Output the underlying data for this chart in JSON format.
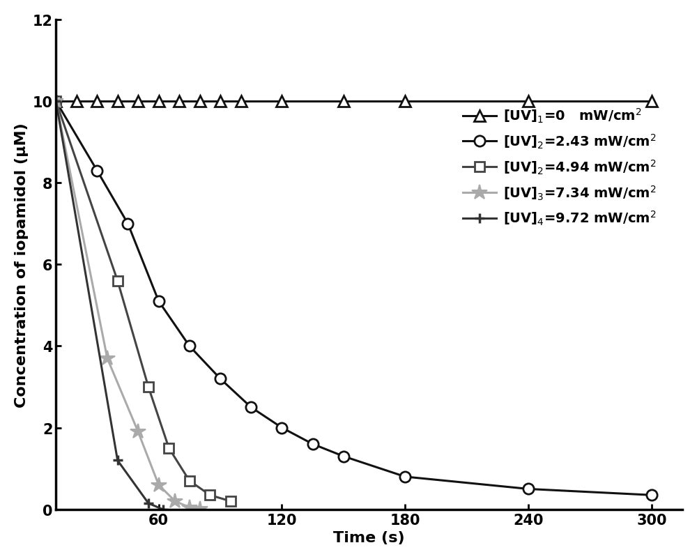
{
  "series": [
    {
      "label": "[UV]$_1$=0   mW/cm$^2$",
      "color": "#111111",
      "marker": "^",
      "markersize": 11,
      "linewidth": 2.2,
      "markerfacecolor": "white",
      "markeredgecolor": "#111111",
      "markeredgewidth": 2.0,
      "x": [
        10,
        20,
        30,
        40,
        50,
        60,
        70,
        80,
        90,
        100,
        120,
        150,
        180,
        240,
        300
      ],
      "y": [
        10,
        10,
        10,
        10,
        10,
        10,
        10,
        10,
        10,
        10,
        10,
        10,
        10,
        10,
        10
      ]
    },
    {
      "label": "[UV]$_2$=2.43 mW/cm$^2$",
      "color": "#111111",
      "marker": "o",
      "markersize": 11,
      "linewidth": 2.2,
      "markerfacecolor": "white",
      "markeredgecolor": "#111111",
      "markeredgewidth": 2.0,
      "x": [
        10,
        30,
        45,
        60,
        75,
        90,
        105,
        120,
        135,
        150,
        180,
        240,
        300
      ],
      "y": [
        10,
        8.3,
        7.0,
        5.1,
        4.0,
        3.2,
        2.5,
        2.0,
        1.6,
        1.3,
        0.8,
        0.5,
        0.35
      ]
    },
    {
      "label": "[UV]$_2$=4.94 mW/cm$^2$",
      "color": "#444444",
      "marker": "s",
      "markersize": 10,
      "linewidth": 2.2,
      "markerfacecolor": "white",
      "markeredgecolor": "#444444",
      "markeredgewidth": 2.0,
      "x": [
        10,
        40,
        55,
        65,
        75,
        85,
        95
      ],
      "y": [
        10,
        5.6,
        3.0,
        1.5,
        0.7,
        0.35,
        0.2
      ]
    },
    {
      "label": "[UV]$_3$=7.34 mW/cm$^2$",
      "color": "#aaaaaa",
      "marker": "*",
      "markersize": 16,
      "linewidth": 2.2,
      "markerfacecolor": "#aaaaaa",
      "markeredgecolor": "#aaaaaa",
      "markeredgewidth": 1.5,
      "x": [
        10,
        35,
        50,
        60,
        68,
        75,
        80
      ],
      "y": [
        10,
        3.7,
        1.9,
        0.6,
        0.2,
        0.05,
        0.02
      ]
    },
    {
      "label": "[UV]$_4$=9.72 mW/cm$^2$",
      "color": "#333333",
      "marker": "P",
      "markersize": 10,
      "linewidth": 2.2,
      "markerfacecolor": "#333333",
      "markeredgecolor": "#333333",
      "markeredgewidth": 1.5,
      "x": [
        10,
        40,
        55,
        62
      ],
      "y": [
        10,
        1.2,
        0.15,
        0.0
      ]
    }
  ],
  "xlabel": "Time (s)",
  "ylabel": "Concentration of iopamidol (μM)",
  "xlim": [
    10,
    315
  ],
  "ylim": [
    0,
    12
  ],
  "xticks": [
    60,
    120,
    180,
    240,
    300
  ],
  "yticks": [
    0,
    2,
    4,
    6,
    8,
    10,
    12
  ],
  "legend_fontsize": 14,
  "tick_fontsize": 15,
  "label_fontsize": 16,
  "background_color": "#ffffff"
}
